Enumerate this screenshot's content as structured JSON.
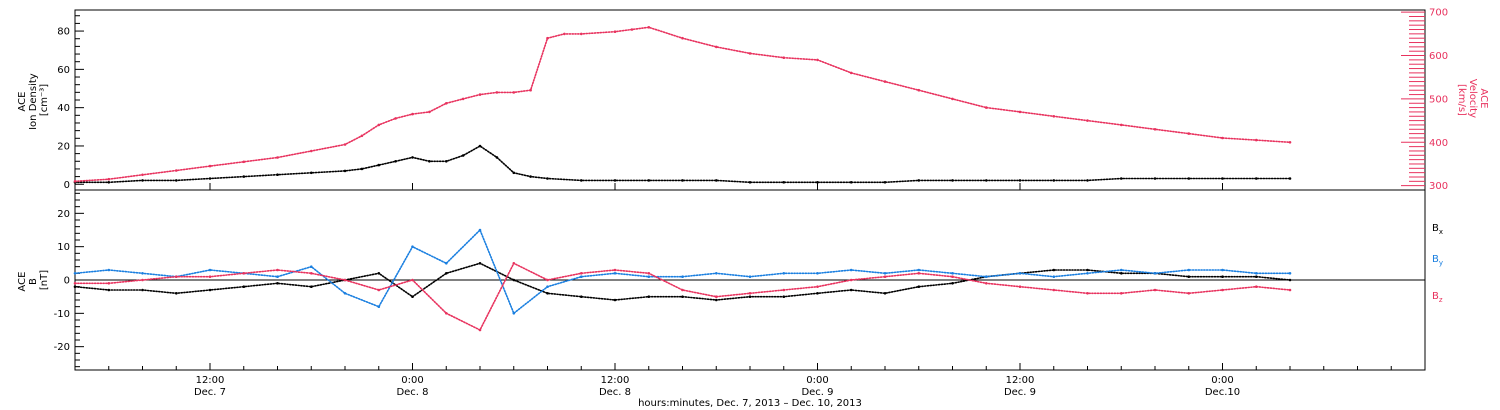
{
  "figure": {
    "x_axis_title": "hours:minutes, Dec. 7, 2013 – Dec. 10, 2013",
    "x_ticks": [
      {
        "time": "12:00",
        "day": "Dec. 7",
        "hours": 12
      },
      {
        "time": "0:00",
        "day": "Dec. 8",
        "hours": 24
      },
      {
        "time": "12:00",
        "day": "Dec. 8",
        "hours": 36
      },
      {
        "time": "0:00",
        "day": "Dec. 9",
        "hours": 48
      },
      {
        "time": "12:00",
        "day": "Dec. 9",
        "hours": 60
      },
      {
        "time": "0:00",
        "day": "Dec.10",
        "hours": 72
      }
    ],
    "x_range_hours": [
      4.0,
      84.0
    ],
    "colors": {
      "black": "#000000",
      "pink": "#e8325e",
      "blue": "#1a7fe0"
    }
  },
  "chart_data": [
    {
      "type": "scatter",
      "panel": "plasma",
      "left_axis": {
        "lines": [
          "ACE",
          "Ion Density",
          "[cm⁻³]"
        ],
        "ticks": [
          0,
          20,
          40,
          60,
          80
        ],
        "ylim": [
          -3,
          91
        ],
        "color": "#000000"
      },
      "right_axis": {
        "lines": [
          "ACE",
          "Velocity",
          "[km/s]"
        ],
        "ticks": [
          300,
          400,
          500,
          600,
          700
        ],
        "ylim": [
          290,
          705
        ],
        "color": "#e8325e"
      },
      "x_units": "hours since Dec. 7, 2013 00:00 UT",
      "series": [
        {
          "axis": "left",
          "color": "#000000",
          "x": [
            4,
            6,
            8,
            10,
            12,
            14,
            16,
            18,
            20,
            21,
            22,
            23,
            24,
            25,
            26,
            27,
            28,
            29,
            30,
            31,
            32,
            34,
            36,
            38,
            40,
            42,
            44,
            46,
            48,
            50,
            52,
            54,
            56,
            58,
            60,
            62,
            64,
            66,
            68,
            70,
            72,
            74,
            76
          ],
          "y": [
            1,
            1,
            2,
            2,
            3,
            4,
            5,
            6,
            7,
            8,
            10,
            12,
            14,
            12,
            12,
            15,
            20,
            14,
            6,
            4,
            3,
            2,
            2,
            2,
            2,
            2,
            1,
            1,
            1,
            1,
            1,
            2,
            2,
            2,
            2,
            2,
            2,
            3,
            3,
            3,
            3,
            3,
            3
          ]
        },
        {
          "axis": "right",
          "color": "#e8325e",
          "x": [
            4,
            6,
            8,
            10,
            12,
            14,
            16,
            18,
            20,
            21,
            22,
            23,
            24,
            25,
            26,
            27,
            28,
            29,
            30,
            31,
            32,
            33,
            34,
            36,
            37,
            38,
            40,
            42,
            44,
            46,
            48,
            50,
            52,
            54,
            56,
            58,
            60,
            62,
            64,
            66,
            68,
            70,
            72,
            74,
            76
          ],
          "y": [
            310,
            315,
            325,
            335,
            345,
            355,
            365,
            380,
            395,
            415,
            440,
            455,
            465,
            470,
            490,
            500,
            510,
            515,
            515,
            520,
            640,
            650,
            650,
            655,
            660,
            665,
            640,
            620,
            605,
            595,
            590,
            560,
            540,
            520,
            500,
            480,
            470,
            460,
            450,
            440,
            430,
            420,
            410,
            405,
            400
          ]
        }
      ]
    },
    {
      "type": "scatter",
      "panel": "magnetic-field",
      "left_axis": {
        "lines": [
          "ACE",
          "B",
          "[nT]"
        ],
        "ticks": [
          -20,
          -10,
          0,
          10,
          20
        ],
        "ylim": [
          -27,
          27
        ],
        "color": "#000000"
      },
      "x_units": "hours since Dec. 7, 2013 00:00 UT",
      "series": [
        {
          "name": "Bx",
          "color": "#000000",
          "x": [
            4,
            6,
            8,
            10,
            12,
            14,
            16,
            18,
            20,
            22,
            24,
            26,
            28,
            30,
            32,
            34,
            36,
            38,
            40,
            42,
            44,
            46,
            48,
            50,
            52,
            54,
            56,
            58,
            60,
            62,
            64,
            66,
            68,
            70,
            72,
            74,
            76
          ],
          "y": [
            -2,
            -3,
            -3,
            -4,
            -3,
            -2,
            -1,
            -2,
            0,
            2,
            -5,
            2,
            5,
            0,
            -4,
            -5,
            -6,
            -5,
            -5,
            -6,
            -5,
            -5,
            -4,
            -3,
            -4,
            -2,
            -1,
            1,
            2,
            3,
            3,
            2,
            2,
            1,
            1,
            1,
            0
          ]
        },
        {
          "name": "By",
          "color": "#1a7fe0",
          "x": [
            4,
            6,
            8,
            10,
            12,
            14,
            16,
            18,
            20,
            22,
            24,
            26,
            28,
            30,
            32,
            34,
            36,
            38,
            40,
            42,
            44,
            46,
            48,
            50,
            52,
            54,
            56,
            58,
            60,
            62,
            64,
            66,
            68,
            70,
            72,
            74,
            76
          ],
          "y": [
            2,
            3,
            2,
            1,
            3,
            2,
            1,
            4,
            -4,
            -8,
            10,
            5,
            15,
            -10,
            -2,
            1,
            2,
            1,
            1,
            2,
            1,
            2,
            2,
            3,
            2,
            3,
            2,
            1,
            2,
            1,
            2,
            3,
            2,
            3,
            3,
            2,
            2
          ]
        },
        {
          "name": "Bz",
          "color": "#e8325e",
          "x": [
            4,
            6,
            8,
            10,
            12,
            14,
            16,
            18,
            20,
            22,
            24,
            26,
            28,
            30,
            32,
            34,
            36,
            38,
            40,
            42,
            44,
            46,
            48,
            50,
            52,
            54,
            56,
            58,
            60,
            62,
            64,
            66,
            68,
            70,
            72,
            74,
            76
          ],
          "y": [
            -1,
            -1,
            0,
            1,
            1,
            2,
            3,
            2,
            0,
            -3,
            0,
            -10,
            -15,
            5,
            0,
            2,
            3,
            2,
            -3,
            -5,
            -4,
            -3,
            -2,
            0,
            1,
            2,
            1,
            -1,
            -2,
            -3,
            -4,
            -4,
            -3,
            -4,
            -3,
            -2,
            -3
          ]
        }
      ],
      "legend": {
        "placement": "right",
        "entries": [
          {
            "main": "B",
            "sub": "x",
            "color": "#000000"
          },
          {
            "main": "B",
            "sub": "y",
            "color": "#1a7fe0"
          },
          {
            "main": "B",
            "sub": "z",
            "color": "#e8325e"
          }
        ]
      }
    }
  ]
}
